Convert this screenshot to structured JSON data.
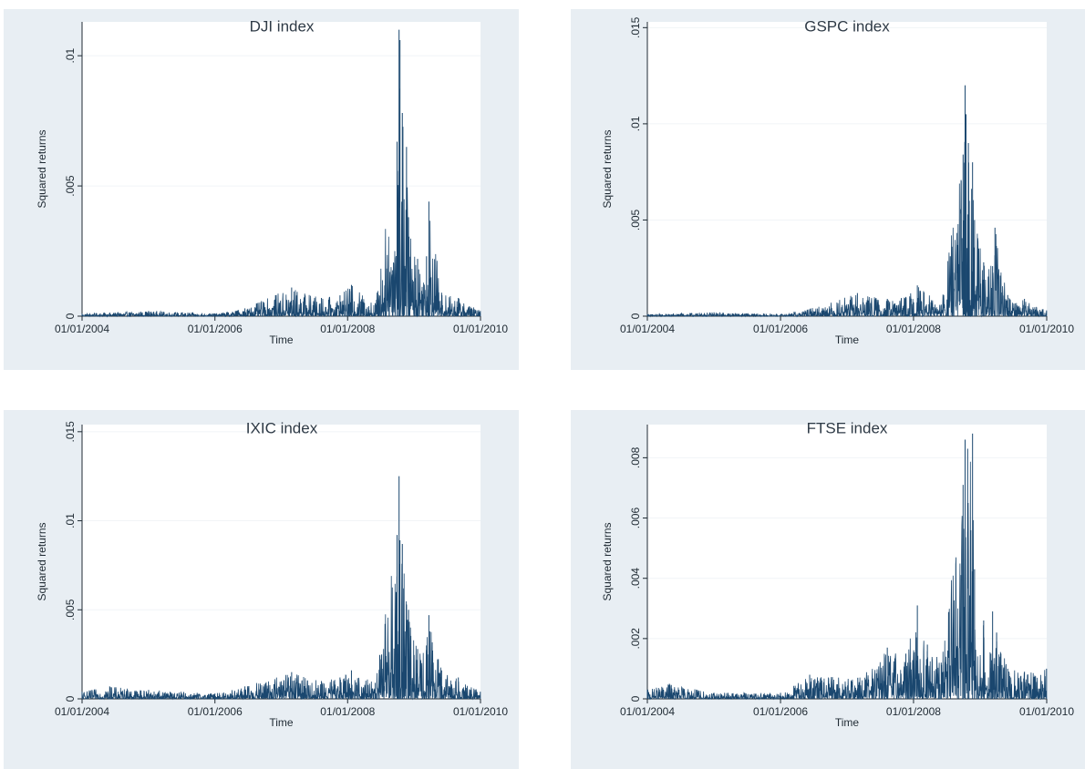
{
  "chart_data": [
    {
      "type": "line",
      "title": "DJI index",
      "xlabel": "Time",
      "ylabel": "Squared returns",
      "x_ticks": [
        "01/01/2004",
        "01/01/2006",
        "01/01/2008",
        "01/01/2010"
      ],
      "y_ticks": [
        ".01",
        ".005",
        "0"
      ],
      "y_tick_values": [
        0.01,
        0.005,
        0
      ],
      "xlim": [
        "2004-01-01",
        "2010-01-01"
      ],
      "ylim": [
        0,
        0.0113
      ],
      "grid": true,
      "series_color": "#1a476f",
      "x": [
        "2004-01-01",
        "2005-01-01",
        "2006-01-01",
        "2006-06-15",
        "2007-02-27",
        "2007-08-10",
        "2007-11-20",
        "2008-01-22",
        "2008-06-01",
        "2008-09-29",
        "2008-10-10",
        "2008-10-15",
        "2008-10-28",
        "2008-11-20",
        "2008-12-01",
        "2009-01-20",
        "2009-03-10",
        "2009-03-23",
        "2009-06-01",
        "2009-09-01",
        "2009-12-31"
      ],
      "values": [
        0.0001,
        0.0002,
        0.0001,
        0.0003,
        0.0011,
        0.0007,
        0.0008,
        0.0012,
        0.0005,
        0.0067,
        0.011,
        0.0106,
        0.0078,
        0.0065,
        0.0038,
        0.0022,
        0.0023,
        0.0044,
        0.0009,
        0.0007,
        0.0002
      ]
    },
    {
      "type": "line",
      "title": "GSPC index",
      "xlabel": "Time",
      "ylabel": "Squared returns",
      "x_ticks": [
        "01/01/2004",
        "01/01/2006",
        "01/01/2008",
        "01/01/2010"
      ],
      "y_ticks": [
        ".015",
        ".01",
        ".005",
        "0"
      ],
      "y_tick_values": [
        0.015,
        0.01,
        0.005,
        0
      ],
      "xlim": [
        "2004-01-01",
        "2010-01-01"
      ],
      "ylim": [
        0,
        0.0153
      ],
      "grid": true,
      "series_color": "#1a476f",
      "x": [
        "2004-01-01",
        "2005-01-01",
        "2006-01-01",
        "2006-06-15",
        "2007-02-27",
        "2007-08-10",
        "2007-11-20",
        "2008-01-22",
        "2008-06-01",
        "2008-09-29",
        "2008-10-10",
        "2008-10-15",
        "2008-10-28",
        "2008-11-20",
        "2008-12-01",
        "2009-01-20",
        "2009-03-10",
        "2009-03-23",
        "2009-06-01",
        "2009-09-01",
        "2009-12-31"
      ],
      "values": [
        0.0001,
        0.0002,
        0.0001,
        0.0004,
        0.0012,
        0.0009,
        0.001,
        0.0016,
        0.0006,
        0.0084,
        0.012,
        0.0105,
        0.009,
        0.008,
        0.005,
        0.0028,
        0.0026,
        0.0046,
        0.0011,
        0.0009,
        0.0003
      ]
    },
    {
      "type": "line",
      "title": "IXIC index",
      "xlabel": "Time",
      "ylabel": "Squared returns",
      "x_ticks": [
        "01/01/2004",
        "01/01/2006",
        "01/01/2008",
        "01/01/2010"
      ],
      "y_ticks": [
        ".015",
        ".01",
        ".005",
        "0"
      ],
      "y_tick_values": [
        0.015,
        0.01,
        0.005,
        0
      ],
      "xlim": [
        "2004-01-01",
        "2010-01-01"
      ],
      "ylim": [
        0,
        0.0154
      ],
      "grid": true,
      "series_color": "#1a476f",
      "x": [
        "2004-01-01",
        "2004-06-01",
        "2005-01-01",
        "2006-01-01",
        "2006-06-15",
        "2007-02-27",
        "2007-08-10",
        "2007-11-20",
        "2008-01-22",
        "2008-06-01",
        "2008-09-29",
        "2008-10-10",
        "2008-10-15",
        "2008-10-28",
        "2008-11-20",
        "2008-12-01",
        "2009-01-20",
        "2009-03-10",
        "2009-03-23",
        "2009-06-01",
        "2009-09-01",
        "2009-12-31"
      ],
      "values": [
        0.0004,
        0.0007,
        0.0005,
        0.0003,
        0.0007,
        0.0015,
        0.001,
        0.0012,
        0.0016,
        0.0009,
        0.0092,
        0.0125,
        0.0089,
        0.0087,
        0.0053,
        0.005,
        0.0028,
        0.003,
        0.0047,
        0.0016,
        0.0012,
        0.0004
      ]
    },
    {
      "type": "line",
      "title": "FTSE index",
      "xlabel": "Time",
      "ylabel": "Squared returns",
      "x_ticks": [
        "01/01/2004",
        "01/01/2006",
        "01/01/2008",
        "01/01/2010"
      ],
      "y_ticks": [
        ".008",
        ".006",
        ".004",
        ".002",
        "0"
      ],
      "y_tick_values": [
        0.008,
        0.006,
        0.004,
        0.002,
        0
      ],
      "xlim": [
        "2004-01-01",
        "2010-01-01"
      ],
      "ylim": [
        0,
        0.0091
      ],
      "grid": true,
      "series_color": "#1a476f",
      "x": [
        "2004-01-01",
        "2004-05-01",
        "2005-01-01",
        "2006-01-01",
        "2006-06-10",
        "2007-03-01",
        "2007-08-10",
        "2007-11-20",
        "2008-01-22",
        "2008-03-17",
        "2008-06-01",
        "2008-09-29",
        "2008-10-10",
        "2008-10-24",
        "2008-11-20",
        "2008-12-01",
        "2009-01-20",
        "2009-03-01",
        "2009-03-10",
        "2009-04-01",
        "2009-06-01",
        "2009-09-01",
        "2009-12-31"
      ],
      "values": [
        0.0003,
        0.0005,
        0.0002,
        0.0002,
        0.0008,
        0.0007,
        0.0017,
        0.0015,
        0.0031,
        0.0018,
        0.0012,
        0.0071,
        0.0086,
        0.0083,
        0.0088,
        0.0043,
        0.0026,
        0.0015,
        0.0029,
        0.0022,
        0.001,
        0.0009,
        0.001
      ]
    }
  ]
}
